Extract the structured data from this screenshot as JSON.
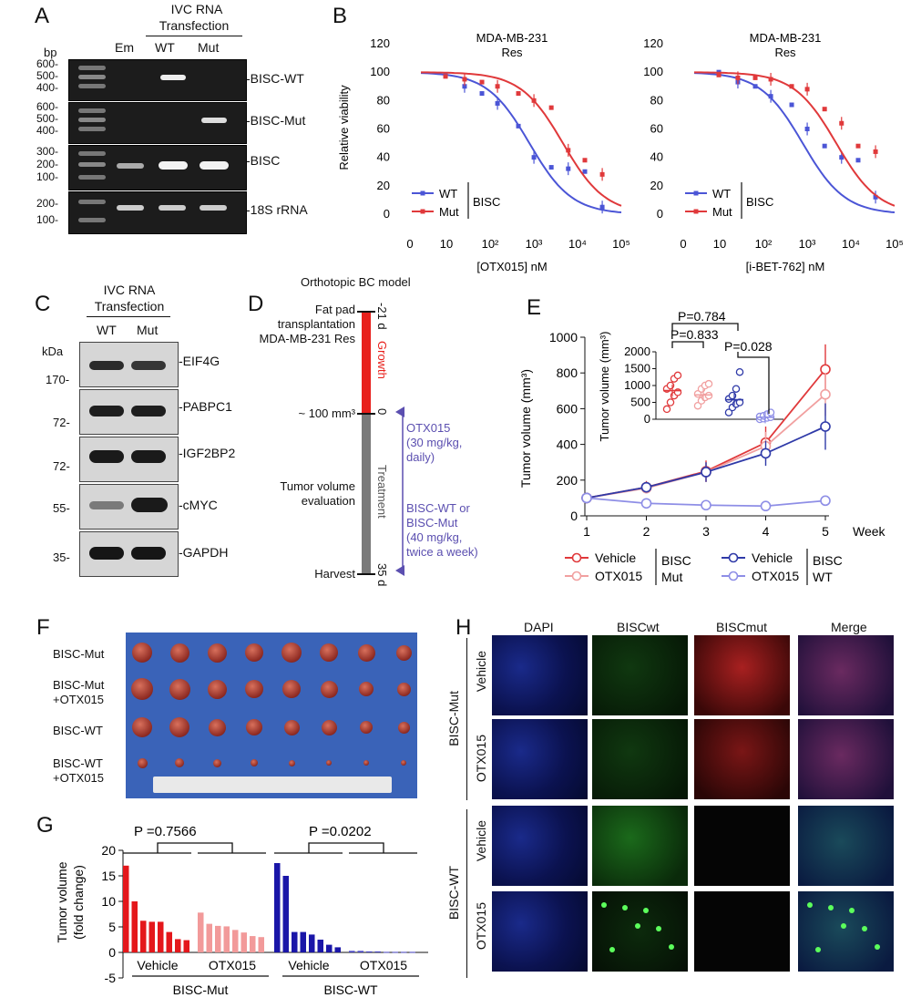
{
  "panels": {
    "A": {
      "letter": "A",
      "header_line1": "IVC RNA",
      "header_line2": "Transfection",
      "bp_label": "bp",
      "lanes": [
        "Em",
        "WT",
        "Mut"
      ],
      "gels": [
        {
          "name": "BISC-WT",
          "label": "-BISC-WT",
          "ticks": [
            "600-",
            "500-",
            "400-"
          ]
        },
        {
          "name": "BISC-Mut",
          "label": "-BISC-Mut",
          "ticks": [
            "600-",
            "500-",
            "400-"
          ]
        },
        {
          "name": "BISC",
          "label": "-BISC",
          "ticks": [
            "300-",
            "200-",
            "100-"
          ]
        },
        {
          "name": "18S rRNA",
          "label": "-18S rRNA",
          "ticks": [
            "200-",
            "100-"
          ]
        }
      ]
    },
    "B": {
      "letter": "B",
      "legend_wt": "WT",
      "legend_mut": "Mut",
      "legend_group": "BISC",
      "x_ticks": [
        "0",
        "10",
        "10²",
        "10³",
        "10⁴",
        "10⁵"
      ],
      "y_ticks": [
        "0",
        "20",
        "40",
        "60",
        "80",
        "100",
        "120"
      ]
    },
    "C": {
      "letter": "C",
      "header_line1": "IVC RNA",
      "header_line2": "Transfection",
      "kda_label": "kDa",
      "lanes": [
        "WT",
        "Mut"
      ],
      "blots": [
        {
          "label": "-EIF4G",
          "tick": "170-"
        },
        {
          "label": "-PABPC1",
          "tick": "72-"
        },
        {
          "label": "-IGF2BP2",
          "tick": "72-"
        },
        {
          "label": "-cMYC",
          "tick": "55-"
        },
        {
          "label": "-GAPDH",
          "tick": "35-"
        }
      ]
    },
    "D": {
      "letter": "D",
      "title": "Orthotopic BC model",
      "event1": "Fat pad transplantation MDA-MB-231 Res",
      "event1_l1": "Fat pad",
      "event1_l2": "transplantation",
      "event1_l3": "MDA-MB-231 Res",
      "event2": "~ 100 mm³",
      "event3_l1": "Tumor volume",
      "event3_l2": "evaluation",
      "event4": "Harvest",
      "tick_start": "-21 d",
      "tick_zero": "0",
      "tick_end": "35 d",
      "growth": "Growth",
      "treatment": "Treatment",
      "drug1_l1": "OTX015",
      "drug1_l2": "(30 mg/kg,",
      "drug1_l3": "daily)",
      "drug2_l1": "BISC-WT or",
      "drug2_l2": "BISC-Mut",
      "drug2_l3": "(40 mg/kg,",
      "drug2_l4": "twice a week)",
      "colors": {
        "growth": "#e8201c",
        "treatment": "#7a7a7a",
        "drug": "#5b4fb0"
      }
    },
    "E": {
      "letter": "E",
      "p1": "P=0.784",
      "p2": "P=0.833",
      "p3": "P=0.028",
      "legend": [
        "Vehicle",
        "OTX015",
        "Vehicle",
        "OTX015"
      ],
      "legend_group_mut_l1": "BISC",
      "legend_group_mut_l2": "Mut",
      "legend_group_wt_l1": "BISC",
      "legend_group_wt_l2": "WT"
    },
    "F": {
      "letter": "F",
      "rows": [
        "BISC-Mut",
        "BISC-Mut +OTX015",
        "BISC-WT",
        "BISC-WT +OTX015"
      ],
      "row_l1": [
        "BISC-Mut",
        "BISC-Mut",
        "BISC-WT",
        "BISC-WT"
      ],
      "row_l2": [
        "",
        "+OTX015",
        "",
        "+OTX015"
      ]
    },
    "G": {
      "letter": "G",
      "p1": "P =0.7566",
      "p2": "P =0.0202",
      "groups": [
        "Vehicle",
        "OTX015",
        "Vehicle",
        "OTX015"
      ],
      "super_groups": [
        "BISC-Mut",
        "BISC-WT"
      ]
    },
    "H": {
      "letter": "H",
      "columns": [
        "DAPI",
        "BISCwt",
        "BISCmut",
        "Merge"
      ],
      "groups": [
        "BISC-Mut",
        "BISC-WT"
      ],
      "rows": [
        "Vehicle",
        "OTX015",
        "Vehicle",
        "OTX015"
      ]
    }
  },
  "chart_data": [
    {
      "type": "scatter",
      "panel": "B-left",
      "title": "MDA-MB-231 Res",
      "title_l1": "MDA-MB-231",
      "title_l2": "Res",
      "xlabel": "[OTX015] nM",
      "ylabel": "Relative viability",
      "x_scale": "log",
      "xlim": [
        0.1,
        100000
      ],
      "ylim": [
        0,
        120
      ],
      "series": [
        {
          "name": "WT",
          "color": "#4b55d6",
          "x": [
            1.5,
            5,
            15,
            40,
            150,
            400,
            1200,
            3500,
            10000,
            30000
          ],
          "y": [
            98,
            90,
            85,
            78,
            62,
            40,
            33,
            32,
            30,
            5
          ]
        },
        {
          "name": "Mut",
          "color": "#e0393b",
          "x": [
            1.5,
            5,
            15,
            40,
            150,
            400,
            1200,
            3500,
            10000,
            30000
          ],
          "y": [
            97,
            95,
            93,
            90,
            85,
            80,
            75,
            45,
            38,
            28
          ]
        }
      ]
    },
    {
      "type": "scatter",
      "panel": "B-right",
      "title": "MDA-MB-231 Res",
      "title_l1": "MDA-MB-231",
      "title_l2": "Res",
      "xlabel": "[i-BET-762] nM",
      "ylabel": "",
      "x_scale": "log",
      "xlim": [
        0.1,
        100000
      ],
      "ylim": [
        0,
        120
      ],
      "series": [
        {
          "name": "WT",
          "color": "#4b55d6",
          "x": [
            1.5,
            5,
            15,
            40,
            150,
            400,
            1200,
            3500,
            10000,
            30000
          ],
          "y": [
            100,
            93,
            90,
            83,
            77,
            60,
            48,
            40,
            38,
            12
          ]
        },
        {
          "name": "Mut",
          "color": "#e0393b",
          "x": [
            1.5,
            5,
            15,
            40,
            150,
            400,
            1200,
            3500,
            10000,
            30000
          ],
          "y": [
            98,
            96,
            96,
            95,
            90,
            88,
            74,
            64,
            48,
            44
          ]
        }
      ]
    },
    {
      "type": "line",
      "panel": "E",
      "xlabel": "Week",
      "ylabel": "Tumor volume (mm³)",
      "x": [
        1,
        2,
        3,
        4,
        5
      ],
      "ylim": [
        0,
        1000
      ],
      "y_ticks": [
        0,
        200,
        400,
        600,
        800,
        1000
      ],
      "series": [
        {
          "name": "Vehicle (BISC Mut)",
          "color": "#e0393b",
          "values": [
            100,
            160,
            250,
            410,
            820
          ],
          "err": [
            15,
            35,
            60,
            90,
            140
          ]
        },
        {
          "name": "OTX015 (BISC Mut)",
          "color": "#f1a0a0",
          "values": [
            100,
            155,
            245,
            390,
            680
          ],
          "err": [
            15,
            30,
            55,
            80,
            120
          ]
        },
        {
          "name": "Vehicle (BISC WT)",
          "color": "#2f3aa8",
          "values": [
            100,
            160,
            245,
            350,
            500
          ],
          "err": [
            15,
            30,
            55,
            70,
            130
          ]
        },
        {
          "name": "OTX015 (BISC WT)",
          "color": "#8e8ee6",
          "values": [
            100,
            70,
            60,
            55,
            85
          ],
          "err": [
            10,
            10,
            8,
            8,
            10
          ]
        }
      ],
      "inset": {
        "type": "scatter",
        "ylabel": "Tumor volume (mm³)",
        "ylim": [
          0,
          2000
        ],
        "y_ticks": [
          0,
          500,
          1000,
          1500,
          2000
        ],
        "groups": [
          {
            "color": "#e0393b",
            "values": [
              300,
              500,
              700,
              800,
              900,
              1000,
              1200,
              1300
            ],
            "mean": 850
          },
          {
            "color": "#f1a0a0",
            "values": [
              400,
              550,
              650,
              700,
              750,
              900,
              1000,
              1050
            ],
            "mean": 720
          },
          {
            "color": "#2f3aa8",
            "values": [
              200,
              350,
              450,
              500,
              600,
              700,
              900,
              1400
            ],
            "mean": 580
          },
          {
            "color": "#8e8ee6",
            "values": [
              0,
              20,
              40,
              60,
              80,
              100,
              150,
              200
            ],
            "mean": 60
          }
        ]
      }
    },
    {
      "type": "bar",
      "panel": "G",
      "ylabel": "Tumor volume (fold change)",
      "ylabel_l1": "Tumor volume",
      "ylabel_l2": "(fold change)",
      "ylim": [
        -5,
        20
      ],
      "y_ticks": [
        -5,
        0,
        5,
        10,
        15,
        20
      ],
      "series": [
        {
          "name": "BISC-Mut Vehicle",
          "color": "#e4171b",
          "values": [
            17,
            10,
            6.2,
            6,
            6,
            4,
            2.6,
            2.4
          ]
        },
        {
          "name": "BISC-Mut OTX015",
          "color": "#f29a9a",
          "values": [
            7.8,
            5.6,
            5.2,
            5.1,
            4.4,
            3.9,
            3.2,
            3.0
          ]
        },
        {
          "name": "BISC-WT Vehicle",
          "color": "#1a16a8",
          "values": [
            17.5,
            15,
            4,
            4,
            3.5,
            2.5,
            1.5,
            1
          ]
        },
        {
          "name": "BISC-WT OTX015",
          "color": "#4a48c4",
          "values": [
            0.3,
            0.3,
            0.2,
            0.2,
            0.1,
            0.1,
            0.1,
            0.1
          ]
        }
      ]
    }
  ]
}
